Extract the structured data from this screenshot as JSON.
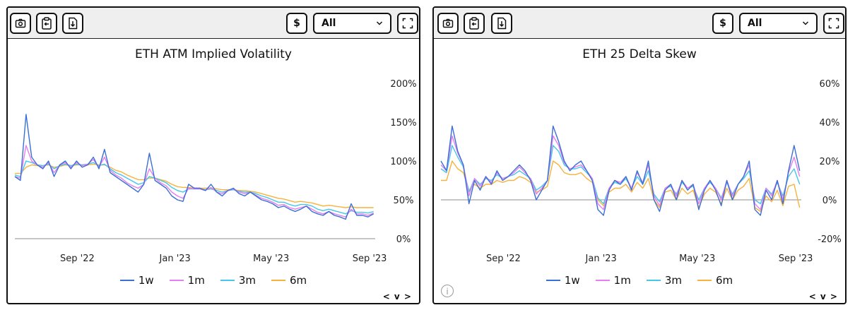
{
  "toolbar": {
    "currency_label": "$",
    "range_select": "All",
    "icons": [
      "camera-icon",
      "clipboard-icon",
      "download-icon",
      "fullscreen-icon"
    ]
  },
  "colors": {
    "1w": "#3b6fd6",
    "1m": "#e57ef0",
    "3m": "#45c6ea",
    "6m": "#f7b23b",
    "zero_line": "#8c8c8c"
  },
  "legend": [
    "1w",
    "1m",
    "3m",
    "6m"
  ],
  "nav_label": "< v >",
  "chart_data": [
    {
      "type": "line",
      "title": "ETH ATM Implied Volatility",
      "x_ticks": [
        "Sep '22",
        "Jan '23",
        "May '23",
        "Sep '23"
      ],
      "x_tick_dates": [
        "2022-09-01",
        "2023-01-01",
        "2023-05-01",
        "2023-09-01"
      ],
      "x_range": [
        "2022-06-15",
        "2023-09-08"
      ],
      "y_ticks": [
        "0%",
        "50%",
        "100%",
        "150%",
        "200%"
      ],
      "ylim": [
        0,
        200
      ],
      "y_axis_side": "right",
      "zero_line": true,
      "sample_dates": [
        "2022-06-15",
        "2022-06-22",
        "2022-06-29",
        "2022-07-06",
        "2022-07-13",
        "2022-07-20",
        "2022-07-27",
        "2022-08-03",
        "2022-08-10",
        "2022-08-17",
        "2022-08-24",
        "2022-08-31",
        "2022-09-07",
        "2022-09-14",
        "2022-09-21",
        "2022-09-28",
        "2022-10-05",
        "2022-10-12",
        "2022-10-19",
        "2022-10-26",
        "2022-11-02",
        "2022-11-09",
        "2022-11-16",
        "2022-11-23",
        "2022-11-30",
        "2022-12-07",
        "2022-12-14",
        "2022-12-21",
        "2022-12-28",
        "2023-01-04",
        "2023-01-11",
        "2023-01-18",
        "2023-01-25",
        "2023-02-01",
        "2023-02-08",
        "2023-02-15",
        "2023-02-22",
        "2023-03-01",
        "2023-03-08",
        "2023-03-15",
        "2023-03-22",
        "2023-03-29",
        "2023-04-05",
        "2023-04-12",
        "2023-04-19",
        "2023-04-26",
        "2023-05-03",
        "2023-05-10",
        "2023-05-17",
        "2023-05-24",
        "2023-05-31",
        "2023-06-07",
        "2023-06-14",
        "2023-06-21",
        "2023-06-28",
        "2023-07-05",
        "2023-07-12",
        "2023-07-19",
        "2023-07-26",
        "2023-08-02",
        "2023-08-09",
        "2023-08-16",
        "2023-08-23",
        "2023-08-30",
        "2023-09-06"
      ],
      "series": [
        {
          "name": "1w",
          "values": [
            80,
            75,
            160,
            105,
            95,
            90,
            100,
            80,
            95,
            100,
            90,
            100,
            92,
            95,
            105,
            90,
            115,
            85,
            80,
            75,
            70,
            65,
            60,
            70,
            110,
            75,
            70,
            65,
            55,
            50,
            48,
            70,
            65,
            65,
            62,
            70,
            60,
            55,
            62,
            65,
            58,
            55,
            60,
            55,
            50,
            48,
            45,
            40,
            42,
            38,
            35,
            38,
            42,
            35,
            32,
            30,
            35,
            30,
            28,
            25,
            45,
            30,
            30,
            28,
            32
          ]
        },
        {
          "name": "1m",
          "values": [
            80,
            78,
            120,
            100,
            95,
            92,
            98,
            85,
            95,
            98,
            92,
            98,
            94,
            96,
            102,
            92,
            105,
            88,
            82,
            78,
            72,
            68,
            65,
            70,
            90,
            78,
            72,
            68,
            60,
            55,
            52,
            65,
            64,
            64,
            62,
            66,
            60,
            58,
            62,
            64,
            60,
            58,
            60,
            56,
            52,
            50,
            47,
            43,
            44,
            40,
            38,
            40,
            42,
            38,
            34,
            32,
            35,
            32,
            30,
            28,
            38,
            32,
            32,
            30,
            33
          ]
        },
        {
          "name": "3m",
          "values": [
            82,
            80,
            100,
            98,
            95,
            94,
            96,
            90,
            94,
            96,
            94,
            96,
            95,
            96,
            98,
            94,
            96,
            90,
            85,
            82,
            78,
            74,
            70,
            72,
            80,
            78,
            75,
            72,
            66,
            62,
            60,
            64,
            64,
            64,
            63,
            64,
            62,
            60,
            62,
            63,
            61,
            60,
            60,
            58,
            55,
            53,
            50,
            47,
            47,
            44,
            42,
            44,
            44,
            42,
            38,
            36,
            38,
            36,
            34,
            32,
            36,
            34,
            34,
            33,
            35
          ]
        },
        {
          "name": "6m",
          "values": [
            84,
            84,
            92,
            95,
            94,
            94,
            95,
            92,
            93,
            95,
            94,
            95,
            95,
            95,
            96,
            95,
            95,
            92,
            88,
            86,
            82,
            79,
            76,
            76,
            78,
            78,
            76,
            74,
            70,
            67,
            66,
            66,
            65,
            65,
            65,
            65,
            64,
            63,
            63,
            63,
            62,
            62,
            61,
            60,
            58,
            56,
            54,
            52,
            51,
            49,
            47,
            48,
            47,
            46,
            44,
            42,
            43,
            42,
            41,
            40,
            41,
            40,
            40,
            40,
            40
          ]
        }
      ]
    },
    {
      "type": "line",
      "title": "ETH 25 Delta Skew",
      "x_ticks": [
        "Sep '22",
        "Jan '23",
        "May '23",
        "Sep '23"
      ],
      "x_tick_dates": [
        "2022-09-01",
        "2023-01-01",
        "2023-05-01",
        "2023-09-01"
      ],
      "x_range": [
        "2022-06-15",
        "2023-09-08"
      ],
      "y_ticks": [
        "-20%",
        "0%",
        "20%",
        "40%",
        "60%"
      ],
      "ylim": [
        -20,
        60
      ],
      "y_axis_side": "right",
      "zero_line": true,
      "sample_dates": [
        "2022-06-15",
        "2022-06-22",
        "2022-06-29",
        "2022-07-06",
        "2022-07-13",
        "2022-07-20",
        "2022-07-27",
        "2022-08-03",
        "2022-08-10",
        "2022-08-17",
        "2022-08-24",
        "2022-08-31",
        "2022-09-07",
        "2022-09-14",
        "2022-09-21",
        "2022-09-28",
        "2022-10-05",
        "2022-10-12",
        "2022-10-19",
        "2022-10-26",
        "2022-11-02",
        "2022-11-09",
        "2022-11-16",
        "2022-11-23",
        "2022-11-30",
        "2022-12-07",
        "2022-12-14",
        "2022-12-21",
        "2022-12-28",
        "2023-01-04",
        "2023-01-11",
        "2023-01-18",
        "2023-01-25",
        "2023-02-01",
        "2023-02-08",
        "2023-02-15",
        "2023-02-22",
        "2023-03-01",
        "2023-03-08",
        "2023-03-15",
        "2023-03-22",
        "2023-03-29",
        "2023-04-05",
        "2023-04-12",
        "2023-04-19",
        "2023-04-26",
        "2023-05-03",
        "2023-05-10",
        "2023-05-17",
        "2023-05-24",
        "2023-05-31",
        "2023-06-07",
        "2023-06-14",
        "2023-06-21",
        "2023-06-28",
        "2023-07-05",
        "2023-07-12",
        "2023-07-19",
        "2023-07-26",
        "2023-08-02",
        "2023-08-09",
        "2023-08-16",
        "2023-08-23",
        "2023-08-30",
        "2023-09-06"
      ],
      "series": [
        {
          "name": "1w",
          "values": [
            20,
            15,
            38,
            25,
            18,
            -2,
            10,
            5,
            12,
            8,
            15,
            10,
            12,
            15,
            18,
            15,
            10,
            0,
            5,
            10,
            38,
            30,
            20,
            15,
            18,
            20,
            15,
            10,
            -5,
            -8,
            5,
            10,
            8,
            12,
            5,
            15,
            8,
            20,
            0,
            -6,
            5,
            8,
            0,
            10,
            5,
            8,
            -5,
            5,
            10,
            5,
            -3,
            10,
            0,
            8,
            12,
            20,
            -5,
            -8,
            5,
            0,
            10,
            -2,
            15,
            28,
            15
          ]
        },
        {
          "name": "1m",
          "values": [
            18,
            15,
            33,
            24,
            18,
            2,
            11,
            7,
            12,
            9,
            14,
            11,
            12,
            14,
            17,
            14,
            11,
            3,
            6,
            10,
            33,
            28,
            19,
            16,
            17,
            18,
            15,
            11,
            -2,
            -5,
            6,
            10,
            9,
            12,
            6,
            14,
            9,
            18,
            2,
            -3,
            6,
            8,
            2,
            10,
            6,
            8,
            -2,
            6,
            10,
            6,
            0,
            10,
            2,
            8,
            12,
            18,
            -2,
            -5,
            6,
            2,
            10,
            0,
            14,
            22,
            12
          ]
        },
        {
          "name": "3m",
          "values": [
            16,
            14,
            28,
            22,
            17,
            4,
            11,
            8,
            11,
            10,
            13,
            11,
            12,
            13,
            15,
            13,
            11,
            5,
            7,
            10,
            28,
            25,
            18,
            16,
            16,
            17,
            14,
            11,
            1,
            -2,
            6,
            9,
            8,
            11,
            6,
            12,
            8,
            15,
            3,
            -1,
            6,
            7,
            3,
            9,
            6,
            7,
            0,
            6,
            9,
            6,
            1,
            9,
            3,
            8,
            11,
            15,
            0,
            -2,
            6,
            3,
            9,
            2,
            12,
            16,
            8
          ]
        },
        {
          "name": "6m",
          "values": [
            10,
            10,
            20,
            16,
            14,
            5,
            8,
            6,
            8,
            8,
            10,
            9,
            10,
            10,
            12,
            11,
            9,
            4,
            5,
            7,
            20,
            18,
            14,
            13,
            13,
            14,
            11,
            9,
            0,
            -3,
            4,
            6,
            6,
            8,
            4,
            9,
            6,
            11,
            0,
            -4,
            4,
            5,
            0,
            6,
            3,
            5,
            -4,
            3,
            6,
            4,
            -2,
            6,
            0,
            5,
            7,
            11,
            -4,
            -6,
            2,
            -1,
            5,
            -3,
            7,
            8,
            -4
          ]
        }
      ]
    }
  ]
}
